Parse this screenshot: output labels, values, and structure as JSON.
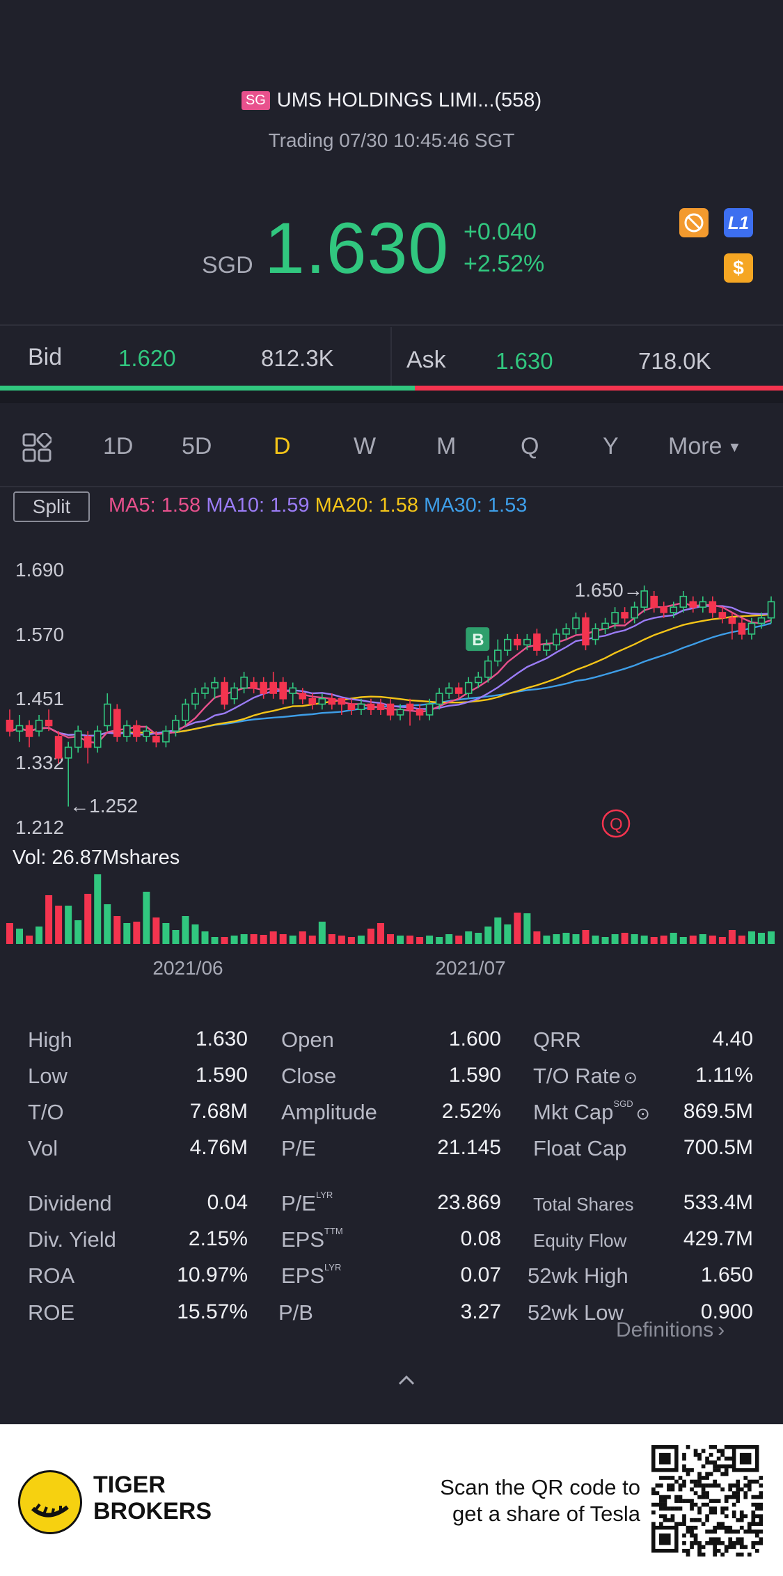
{
  "header": {
    "market_badge": "SG",
    "title": "UMS HOLDINGS LIMI...(558)",
    "status": "Trading 07/30 10:45:46 SGT",
    "currency": "SGD",
    "price": "1.630",
    "change": "+0.040",
    "change_pct": "+2.52%",
    "icons": [
      "no-short-icon",
      "level1-icon",
      "dollar-icon"
    ],
    "level_label": "L1",
    "dollar_label": "$"
  },
  "quote": {
    "bid_label": "Bid",
    "bid_price": "1.620",
    "bid_size": "812.3K",
    "ask_label": "Ask",
    "ask_price": "1.630",
    "ask_size": "718.0K",
    "bid_ratio": 0.53
  },
  "tabs": [
    "1D",
    "5D",
    "D",
    "W",
    "M",
    "Q",
    "Y",
    "More"
  ],
  "active_tab": "D",
  "indicators": {
    "split_label": "Split",
    "ma5": "MA5: 1.58",
    "ma10": "MA10: 1.59",
    "ma20": "MA20: 1.58",
    "ma30": "MA30: 1.53",
    "colors": {
      "ma5": "#e8518d",
      "ma10": "#9b7cf6",
      "ma20": "#f5c518",
      "ma30": "#3e9ee8"
    }
  },
  "chart_data": {
    "type": "candlestick",
    "y_ticks": [
      "1.690",
      "1.570",
      "1.451",
      "1.332",
      "1.212"
    ],
    "ylim": [
      1.212,
      1.69
    ],
    "high_marker": "1.650",
    "low_marker": "1.252",
    "buy_marker": "B",
    "quote_marker": "Q",
    "x_ticks": [
      "2021/06",
      "2021/07"
    ],
    "volume_label": "Vol",
    "volume_value": ": 26.87Mshares",
    "candles": [
      [
        1.41,
        1.39,
        1.43,
        1.38
      ],
      [
        1.39,
        1.4,
        1.42,
        1.37
      ],
      [
        1.4,
        1.38,
        1.41,
        1.36
      ],
      [
        1.39,
        1.41,
        1.42,
        1.38
      ],
      [
        1.41,
        1.4,
        1.43,
        1.39
      ],
      [
        1.38,
        1.34,
        1.39,
        1.33
      ],
      [
        1.34,
        1.36,
        1.37,
        1.25
      ],
      [
        1.36,
        1.39,
        1.4,
        1.35
      ],
      [
        1.38,
        1.36,
        1.39,
        1.33
      ],
      [
        1.36,
        1.39,
        1.4,
        1.35
      ],
      [
        1.4,
        1.44,
        1.46,
        1.39
      ],
      [
        1.43,
        1.38,
        1.44,
        1.37
      ],
      [
        1.38,
        1.4,
        1.41,
        1.37
      ],
      [
        1.4,
        1.38,
        1.41,
        1.37
      ],
      [
        1.38,
        1.39,
        1.4,
        1.37
      ],
      [
        1.38,
        1.37,
        1.39,
        1.36
      ],
      [
        1.37,
        1.39,
        1.4,
        1.36
      ],
      [
        1.39,
        1.41,
        1.42,
        1.38
      ],
      [
        1.41,
        1.44,
        1.45,
        1.4
      ],
      [
        1.44,
        1.46,
        1.47,
        1.43
      ],
      [
        1.46,
        1.47,
        1.48,
        1.45
      ],
      [
        1.47,
        1.48,
        1.49,
        1.45
      ],
      [
        1.48,
        1.44,
        1.49,
        1.43
      ],
      [
        1.45,
        1.47,
        1.48,
        1.44
      ],
      [
        1.47,
        1.49,
        1.5,
        1.46
      ],
      [
        1.48,
        1.47,
        1.49,
        1.46
      ],
      [
        1.48,
        1.46,
        1.49,
        1.45
      ],
      [
        1.48,
        1.46,
        1.5,
        1.45
      ],
      [
        1.48,
        1.45,
        1.49,
        1.44
      ],
      [
        1.46,
        1.47,
        1.48,
        1.44
      ],
      [
        1.46,
        1.45,
        1.47,
        1.44
      ],
      [
        1.45,
        1.44,
        1.46,
        1.43
      ],
      [
        1.44,
        1.45,
        1.46,
        1.43
      ],
      [
        1.45,
        1.44,
        1.46,
        1.43
      ],
      [
        1.45,
        1.44,
        1.45,
        1.42
      ],
      [
        1.44,
        1.43,
        1.45,
        1.42
      ],
      [
        1.43,
        1.44,
        1.45,
        1.42
      ],
      [
        1.44,
        1.43,
        1.45,
        1.42
      ],
      [
        1.44,
        1.43,
        1.45,
        1.42
      ],
      [
        1.44,
        1.42,
        1.45,
        1.41
      ],
      [
        1.42,
        1.43,
        1.44,
        1.41
      ],
      [
        1.44,
        1.43,
        1.45,
        1.4
      ],
      [
        1.43,
        1.42,
        1.44,
        1.41
      ],
      [
        1.42,
        1.44,
        1.45,
        1.41
      ],
      [
        1.44,
        1.46,
        1.47,
        1.43
      ],
      [
        1.46,
        1.47,
        1.48,
        1.45
      ],
      [
        1.47,
        1.46,
        1.48,
        1.45
      ],
      [
        1.46,
        1.48,
        1.49,
        1.45
      ],
      [
        1.48,
        1.49,
        1.5,
        1.47
      ],
      [
        1.49,
        1.52,
        1.53,
        1.48
      ],
      [
        1.52,
        1.54,
        1.56,
        1.51
      ],
      [
        1.54,
        1.56,
        1.57,
        1.53
      ],
      [
        1.56,
        1.55,
        1.57,
        1.54
      ],
      [
        1.55,
        1.56,
        1.57,
        1.54
      ],
      [
        1.57,
        1.54,
        1.58,
        1.53
      ],
      [
        1.54,
        1.55,
        1.56,
        1.53
      ],
      [
        1.55,
        1.57,
        1.58,
        1.54
      ],
      [
        1.57,
        1.58,
        1.59,
        1.56
      ],
      [
        1.58,
        1.6,
        1.61,
        1.57
      ],
      [
        1.6,
        1.55,
        1.61,
        1.54
      ],
      [
        1.56,
        1.58,
        1.59,
        1.55
      ],
      [
        1.58,
        1.59,
        1.6,
        1.57
      ],
      [
        1.59,
        1.61,
        1.62,
        1.58
      ],
      [
        1.61,
        1.6,
        1.62,
        1.59
      ],
      [
        1.6,
        1.62,
        1.63,
        1.59
      ],
      [
        1.62,
        1.65,
        1.66,
        1.61
      ],
      [
        1.64,
        1.62,
        1.65,
        1.61
      ],
      [
        1.62,
        1.61,
        1.63,
        1.6
      ],
      [
        1.61,
        1.62,
        1.63,
        1.6
      ],
      [
        1.62,
        1.64,
        1.65,
        1.61
      ],
      [
        1.63,
        1.62,
        1.64,
        1.61
      ],
      [
        1.62,
        1.63,
        1.64,
        1.61
      ],
      [
        1.63,
        1.61,
        1.64,
        1.6
      ],
      [
        1.61,
        1.6,
        1.62,
        1.59
      ],
      [
        1.6,
        1.59,
        1.61,
        1.56
      ],
      [
        1.59,
        1.57,
        1.6,
        1.56
      ],
      [
        1.57,
        1.59,
        1.6,
        1.56
      ],
      [
        1.59,
        1.6,
        1.61,
        1.58
      ],
      [
        1.6,
        1.63,
        1.64,
        1.59
      ]
    ],
    "volumes": [
      0.3,
      0.22,
      0.12,
      0.25,
      0.7,
      0.55,
      0.55,
      0.34,
      0.72,
      1.0,
      0.57,
      0.4,
      0.3,
      0.32,
      0.75,
      0.38,
      0.3,
      0.2,
      0.4,
      0.28,
      0.18,
      0.1,
      0.1,
      0.12,
      0.14,
      0.14,
      0.13,
      0.18,
      0.14,
      0.12,
      0.18,
      0.12,
      0.32,
      0.14,
      0.12,
      0.1,
      0.12,
      0.22,
      0.3,
      0.14,
      0.12,
      0.12,
      0.1,
      0.12,
      0.1,
      0.14,
      0.12,
      0.18,
      0.16,
      0.25,
      0.38,
      0.28,
      0.45,
      0.44,
      0.18,
      0.12,
      0.14,
      0.16,
      0.14,
      0.2,
      0.12,
      0.1,
      0.14,
      0.16,
      0.14,
      0.12,
      0.1,
      0.12,
      0.16,
      0.1,
      0.12,
      0.14,
      0.12,
      0.1,
      0.2,
      0.12,
      0.18,
      0.16,
      0.18
    ]
  },
  "stats": {
    "col1": [
      {
        "label": "High",
        "value": "1.630"
      },
      {
        "label": "Low",
        "value": "1.590"
      },
      {
        "label": "T/O",
        "value": "7.68M"
      },
      {
        "label": "Vol",
        "value": "4.76M"
      },
      {
        "label": "Dividend",
        "value": "0.04"
      },
      {
        "label": "Div. Yield",
        "value": "2.15%"
      },
      {
        "label": "ROA",
        "value": "10.97%"
      },
      {
        "label": "ROE",
        "value": "15.57%"
      }
    ],
    "col2": [
      {
        "label": "Open",
        "value": "1.600",
        "sup": ""
      },
      {
        "label": "Close",
        "value": "1.590",
        "sup": ""
      },
      {
        "label": "Amplitude",
        "value": "2.52%",
        "sup": ""
      },
      {
        "label": "P/E",
        "value": "21.145",
        "sup": ""
      },
      {
        "label": "P/E",
        "value": "23.869",
        "sup": "LYR"
      },
      {
        "label": "EPS",
        "value": "0.08",
        "sup": "TTM"
      },
      {
        "label": "EPS",
        "value": "0.07",
        "sup": "LYR"
      },
      {
        "label": "P/B",
        "value": "3.27",
        "sup": ""
      }
    ],
    "col3": [
      {
        "label": "QRR",
        "value": "4.40",
        "sup": ""
      },
      {
        "label": "T/O Rate",
        "value": "1.11%",
        "sup": ""
      },
      {
        "label": "Mkt Cap",
        "value": "869.5M",
        "sup": "SGD"
      },
      {
        "label": "Float Cap",
        "value": "700.5M",
        "sup": ""
      },
      {
        "label": "Total Shares",
        "value": "533.4M",
        "sup": ""
      },
      {
        "label": "Equity Flow",
        "value": "429.7M",
        "sup": ""
      },
      {
        "label": "52wk High",
        "value": "1.650",
        "sup": ""
      },
      {
        "label": "52wk Low",
        "value": "0.900",
        "sup": ""
      }
    ],
    "definitions_label": "Definitions"
  },
  "footer": {
    "brand_line1": "TIGER",
    "brand_line2": "BROKERS",
    "promo_line1": "Scan the QR code to",
    "promo_line2": "get a share of Tesla"
  }
}
